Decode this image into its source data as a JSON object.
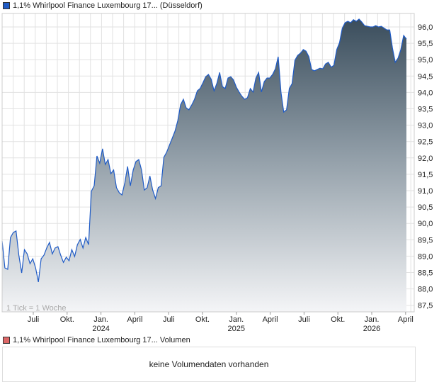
{
  "price_legend": {
    "label": "1,1% Whirlpool Finance Luxembourg 17... (Düsseldorf)",
    "color": "#1f5bc6"
  },
  "volume_legend": {
    "label": "1,1% Whirlpool Finance Luxembourg 17... Volumen",
    "color": "#d66"
  },
  "volume_message": "keine Volumendaten vorhanden",
  "tick_note": "1 Tick = 1 Woche",
  "chart_data": {
    "type": "area",
    "title": "1,1% Whirlpool Finance Luxembourg 17... (Düsseldorf)",
    "xlabel": "",
    "ylabel": "",
    "ylim": [
      87.25,
      96.4
    ],
    "grid": true,
    "y_ticks": [
      "87,5",
      "88,0",
      "88,5",
      "89,0",
      "89,5",
      "90,0",
      "90,5",
      "91,0",
      "91,5",
      "92,0",
      "92,5",
      "93,0",
      "93,5",
      "94,0",
      "94,5",
      "95,0",
      "95,5",
      "96,0"
    ],
    "x_ticks": [
      {
        "label": "Juli",
        "year": ""
      },
      {
        "label": "Okt.",
        "year": ""
      },
      {
        "label": "Jan.",
        "year": "2024"
      },
      {
        "label": "April",
        "year": ""
      },
      {
        "label": "Juli",
        "year": ""
      },
      {
        "label": "Okt.",
        "year": ""
      },
      {
        "label": "Jan.",
        "year": "2025"
      },
      {
        "label": "April",
        "year": ""
      },
      {
        "label": "Juli",
        "year": ""
      },
      {
        "label": "Okt.",
        "year": ""
      },
      {
        "label": "Jan.",
        "year": "2026"
      },
      {
        "label": "April",
        "year": ""
      }
    ],
    "frequency": "weekly",
    "values": [
      89.46,
      88.64,
      88.6,
      89.57,
      89.72,
      89.77,
      89.03,
      88.49,
      89.2,
      89.07,
      88.77,
      88.92,
      88.64,
      88.21,
      88.92,
      89.03,
      89.25,
      89.42,
      89.07,
      89.25,
      89.29,
      89.03,
      88.81,
      88.97,
      88.86,
      89.2,
      88.99,
      89.35,
      89.51,
      89.25,
      89.57,
      89.35,
      90.98,
      91.15,
      92.06,
      91.84,
      92.28,
      91.8,
      91.95,
      91.52,
      91.63,
      91.09,
      90.94,
      90.87,
      91.24,
      91.74,
      91.15,
      91.63,
      91.89,
      91.95,
      91.63,
      91.02,
      91.09,
      91.45,
      91.02,
      90.76,
      91.09,
      91.15,
      92.02,
      92.17,
      92.39,
      92.6,
      92.82,
      93.14,
      93.62,
      93.79,
      93.53,
      93.47,
      93.62,
      93.79,
      94.05,
      94.12,
      94.29,
      94.48,
      94.55,
      94.4,
      94.05,
      94.27,
      94.61,
      94.18,
      94.12,
      94.44,
      94.48,
      94.38,
      94.16,
      94.01,
      93.88,
      93.79,
      93.84,
      94.12,
      94.01,
      94.44,
      94.61,
      94.01,
      94.33,
      94.44,
      94.44,
      94.55,
      94.72,
      95.09,
      94.01,
      93.4,
      93.47,
      94.12,
      94.27,
      94.98,
      95.13,
      95.2,
      95.31,
      95.26,
      95.09,
      94.7,
      94.66,
      94.7,
      94.74,
      94.72,
      94.87,
      94.92,
      94.77,
      94.83,
      95.31,
      95.52,
      95.96,
      96.13,
      96.17,
      96.13,
      96.22,
      96.17,
      96.24,
      96.15,
      96.04,
      96.02,
      96.0,
      96.0,
      96.04,
      96.0,
      96.02,
      95.96,
      95.91,
      95.91,
      95.35,
      94.92,
      95.05,
      95.31,
      95.74,
      95.63
    ]
  }
}
